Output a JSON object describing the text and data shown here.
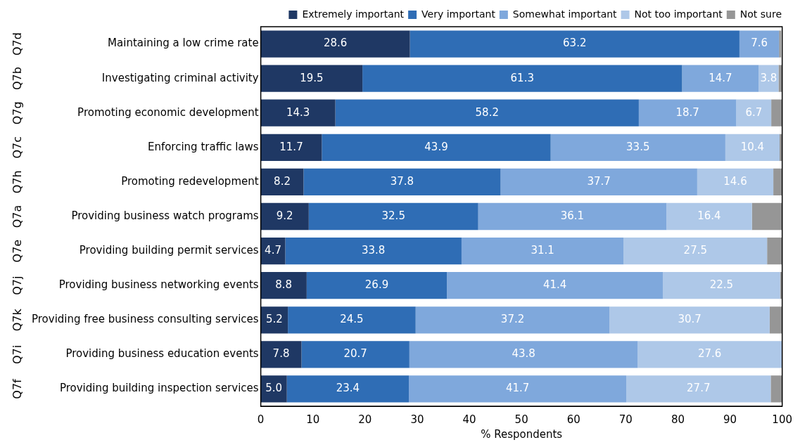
{
  "chart_data": {
    "type": "bar",
    "orientation": "horizontal",
    "stacked": true,
    "xlabel": "% Respondents",
    "legend": "top right",
    "grid": false,
    "data_labels": false,
    "categories": [
      "Maintaining a low crime rate",
      "Investigating criminal activity",
      "Promoting economic development",
      "Enforcing traffic laws",
      "Promoting redevelopment",
      "Providing business watch programs",
      "Providing building permit services",
      "Providing business networking events",
      "Providing free business consulting services",
      "Providing business education events",
      "Providing building inspection services"
    ],
    "annotations": [
      "Q7d",
      "Q7b",
      "Q7g",
      "Q7c",
      "Q7h",
      "Q7a",
      "Q7e",
      "Q7j",
      "Q7k",
      "Q7i",
      "Q7f"
    ],
    "xlim": [
      0,
      100
    ],
    "xticks": [
      0,
      10,
      20,
      30,
      40,
      50,
      60,
      70,
      80,
      90,
      100
    ],
    "series": [
      {
        "name": "Extremely important",
        "color": "#1f3864",
        "values": [
          28.6,
          19.5,
          14.3,
          11.7,
          8.2,
          9.2,
          4.7,
          8.8,
          5.2,
          7.8,
          5.0
        ],
        "value_labels": [
          "28.6",
          "19.5",
          "14.3",
          "11.7",
          "8.2",
          "9.2",
          "4.7",
          "8.8",
          "5.2",
          "7.8",
          "5.0"
        ]
      },
      {
        "name": "Very important",
        "color": "#2f6db5",
        "values": [
          63.2,
          61.3,
          58.2,
          43.9,
          37.8,
          32.5,
          33.8,
          26.9,
          24.5,
          20.7,
          23.4
        ],
        "value_labels": [
          "63.2",
          "61.3",
          "58.2",
          "43.9",
          "37.8",
          "32.5",
          "33.8",
          "26.9",
          "24.5",
          "20.7",
          "23.4"
        ]
      },
      {
        "name": "Somewhat important",
        "color": "#7fa8dc",
        "values": [
          7.6,
          14.7,
          18.7,
          33.5,
          37.7,
          36.1,
          31.1,
          41.4,
          37.2,
          43.8,
          41.7
        ],
        "value_labels": [
          "7.6",
          "14.7",
          "18.7",
          "33.5",
          "37.7",
          "36.1",
          "31.1",
          "41.4",
          "37.2",
          "43.8",
          "41.7"
        ]
      },
      {
        "name": "Not too important",
        "color": "#aec8e8",
        "values": [
          null,
          3.8,
          6.7,
          10.4,
          14.6,
          16.4,
          27.5,
          22.5,
          30.7,
          27.6,
          27.7
        ],
        "value_labels": [
          null,
          "3.8",
          "6.7",
          "10.4",
          "14.6",
          "16.4",
          "27.5",
          "22.5",
          "30.7",
          "27.6",
          "27.7"
        ]
      },
      {
        "name": "Not sure",
        "color": "#969696",
        "values": [
          0.4,
          0.7,
          2.1,
          0.5,
          1.7,
          5.8,
          2.9,
          0.4,
          2.4,
          null,
          2.2
        ],
        "value_labels": [
          null,
          null,
          null,
          null,
          null,
          null,
          null,
          null,
          null,
          null,
          null
        ]
      }
    ]
  }
}
